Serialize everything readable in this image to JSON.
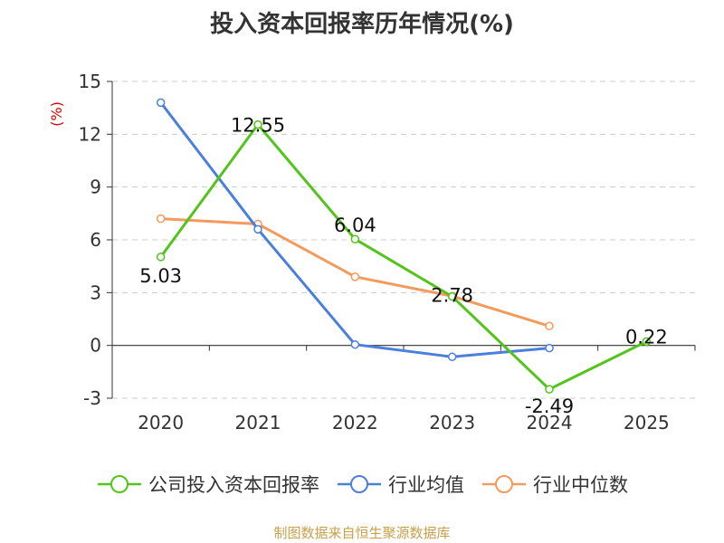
{
  "chart_data": {
    "type": "line",
    "title": "投入资本回报率历年情况(%)",
    "ylabel": "(%)",
    "xlabel": "",
    "categories": [
      "2020",
      "2021",
      "2022",
      "2023",
      "2024",
      "2025"
    ],
    "ylim": [
      -3,
      15
    ],
    "yticks": [
      -3,
      0,
      3,
      6,
      9,
      12,
      15
    ],
    "grid": true,
    "legend_position": "bottom",
    "series": [
      {
        "name": "公司投入资本回报率",
        "color": "#52c41a",
        "values": [
          5.03,
          12.55,
          6.04,
          2.78,
          -2.49,
          0.22
        ],
        "labels": [
          "5.03",
          "12.55",
          "6.04",
          "2.78",
          "-2.49",
          "0.22"
        ]
      },
      {
        "name": "行业均值",
        "color": "#4a7fdc",
        "values": [
          13.8,
          6.6,
          0.05,
          -0.65,
          -0.15,
          null
        ]
      },
      {
        "name": "行业中位数",
        "color": "#f39a5c",
        "values": [
          7.2,
          6.9,
          3.9,
          2.8,
          1.1,
          null
        ]
      }
    ]
  },
  "source": "制图数据来自恒生聚源数据库"
}
